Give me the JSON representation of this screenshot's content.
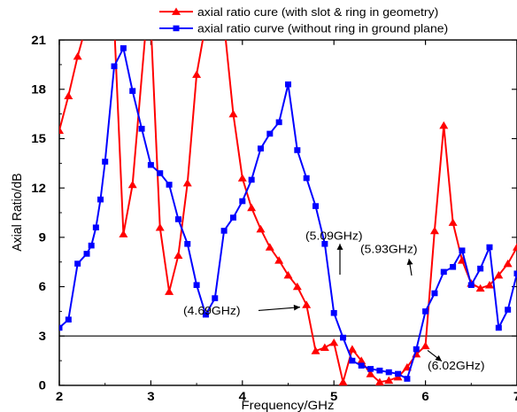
{
  "chart_data": {
    "type": "line",
    "xlabel": "Frequency/GHz",
    "ylabel": "Axial Ratio/dB",
    "xlim": [
      2,
      7
    ],
    "ylim": [
      0,
      21
    ],
    "xticks": [
      "2",
      "3",
      "4",
      "5",
      "6",
      "7"
    ],
    "yticks": [
      "0",
      "3",
      "6",
      "9",
      "12",
      "15",
      "18",
      "21"
    ],
    "reference_line_y": 3,
    "legend_position": "top",
    "series": [
      {
        "name": "axial ratio cure (with slot & ring in geometry)",
        "color": "#ff0000",
        "marker": "triangle",
        "x": [
          2.0,
          2.1,
          2.2,
          2.3,
          2.6,
          2.7,
          2.8,
          2.95,
          3.0,
          3.1,
          3.2,
          3.3,
          3.4,
          3.5,
          3.6,
          3.8,
          3.9,
          4.0,
          4.1,
          4.2,
          4.3,
          4.4,
          4.5,
          4.6,
          4.7,
          4.8,
          4.9,
          5.0,
          5.1,
          5.2,
          5.3,
          5.4,
          5.5,
          5.6,
          5.7,
          5.8,
          5.9,
          6.0,
          6.1,
          6.2,
          6.3,
          6.4,
          6.5,
          6.6,
          6.7,
          6.8,
          6.9,
          7.0
        ],
        "y": [
          15.5,
          17.6,
          20.0,
          22.0,
          22.0,
          9.2,
          12.2,
          22.0,
          22.0,
          9.6,
          5.7,
          7.9,
          12.3,
          18.9,
          22.0,
          22.0,
          16.5,
          12.6,
          10.8,
          9.5,
          8.4,
          7.6,
          6.7,
          6.0,
          4.9,
          2.1,
          2.3,
          2.6,
          0.2,
          2.2,
          1.5,
          0.7,
          0.2,
          0.3,
          0.5,
          1.1,
          1.9,
          2.4,
          9.4,
          15.8,
          9.9,
          7.6,
          6.2,
          5.9,
          6.1,
          6.7,
          7.4,
          8.4
        ]
      },
      {
        "name": "axial ratio curve (without ring in ground plane)",
        "color": "#0000ff",
        "marker": "square",
        "x": [
          2.0,
          2.1,
          2.2,
          2.3,
          2.35,
          2.4,
          2.45,
          2.5,
          2.6,
          2.7,
          2.8,
          2.9,
          3.0,
          3.1,
          3.2,
          3.3,
          3.4,
          3.5,
          3.6,
          3.7,
          3.8,
          3.9,
          4.0,
          4.1,
          4.2,
          4.3,
          4.4,
          4.5,
          4.6,
          4.7,
          4.8,
          4.9,
          5.0,
          5.1,
          5.2,
          5.3,
          5.4,
          5.5,
          5.6,
          5.7,
          5.8,
          5.9,
          6.0,
          6.1,
          6.2,
          6.3,
          6.4,
          6.5,
          6.6,
          6.7,
          6.8,
          6.9,
          7.0
        ],
        "y": [
          3.5,
          4.0,
          7.4,
          8.0,
          8.5,
          9.6,
          11.3,
          13.6,
          19.4,
          20.5,
          17.9,
          15.6,
          13.4,
          12.9,
          12.2,
          10.1,
          8.6,
          6.1,
          4.3,
          5.3,
          9.4,
          10.2,
          11.2,
          12.5,
          14.4,
          15.3,
          16.0,
          18.3,
          14.3,
          12.6,
          10.9,
          8.6,
          4.4,
          2.9,
          1.5,
          1.2,
          1.0,
          0.9,
          0.8,
          0.7,
          0.4,
          2.2,
          4.5,
          5.6,
          6.9,
          7.2,
          8.2,
          6.1,
          7.1,
          8.4,
          3.5,
          4.6,
          6.8
        ]
      }
    ],
    "annotations": [
      {
        "text": "(4.69GHz)",
        "point_x": 4.69,
        "point_y": 3
      },
      {
        "text": "(5.09GHz)",
        "point_x": 5.09,
        "point_y": 3
      },
      {
        "text": "(5.93GHz)",
        "point_x": 5.93,
        "point_y": 3
      },
      {
        "text": "(6.02GHz)",
        "point_x": 6.02,
        "point_y": 3
      }
    ]
  }
}
